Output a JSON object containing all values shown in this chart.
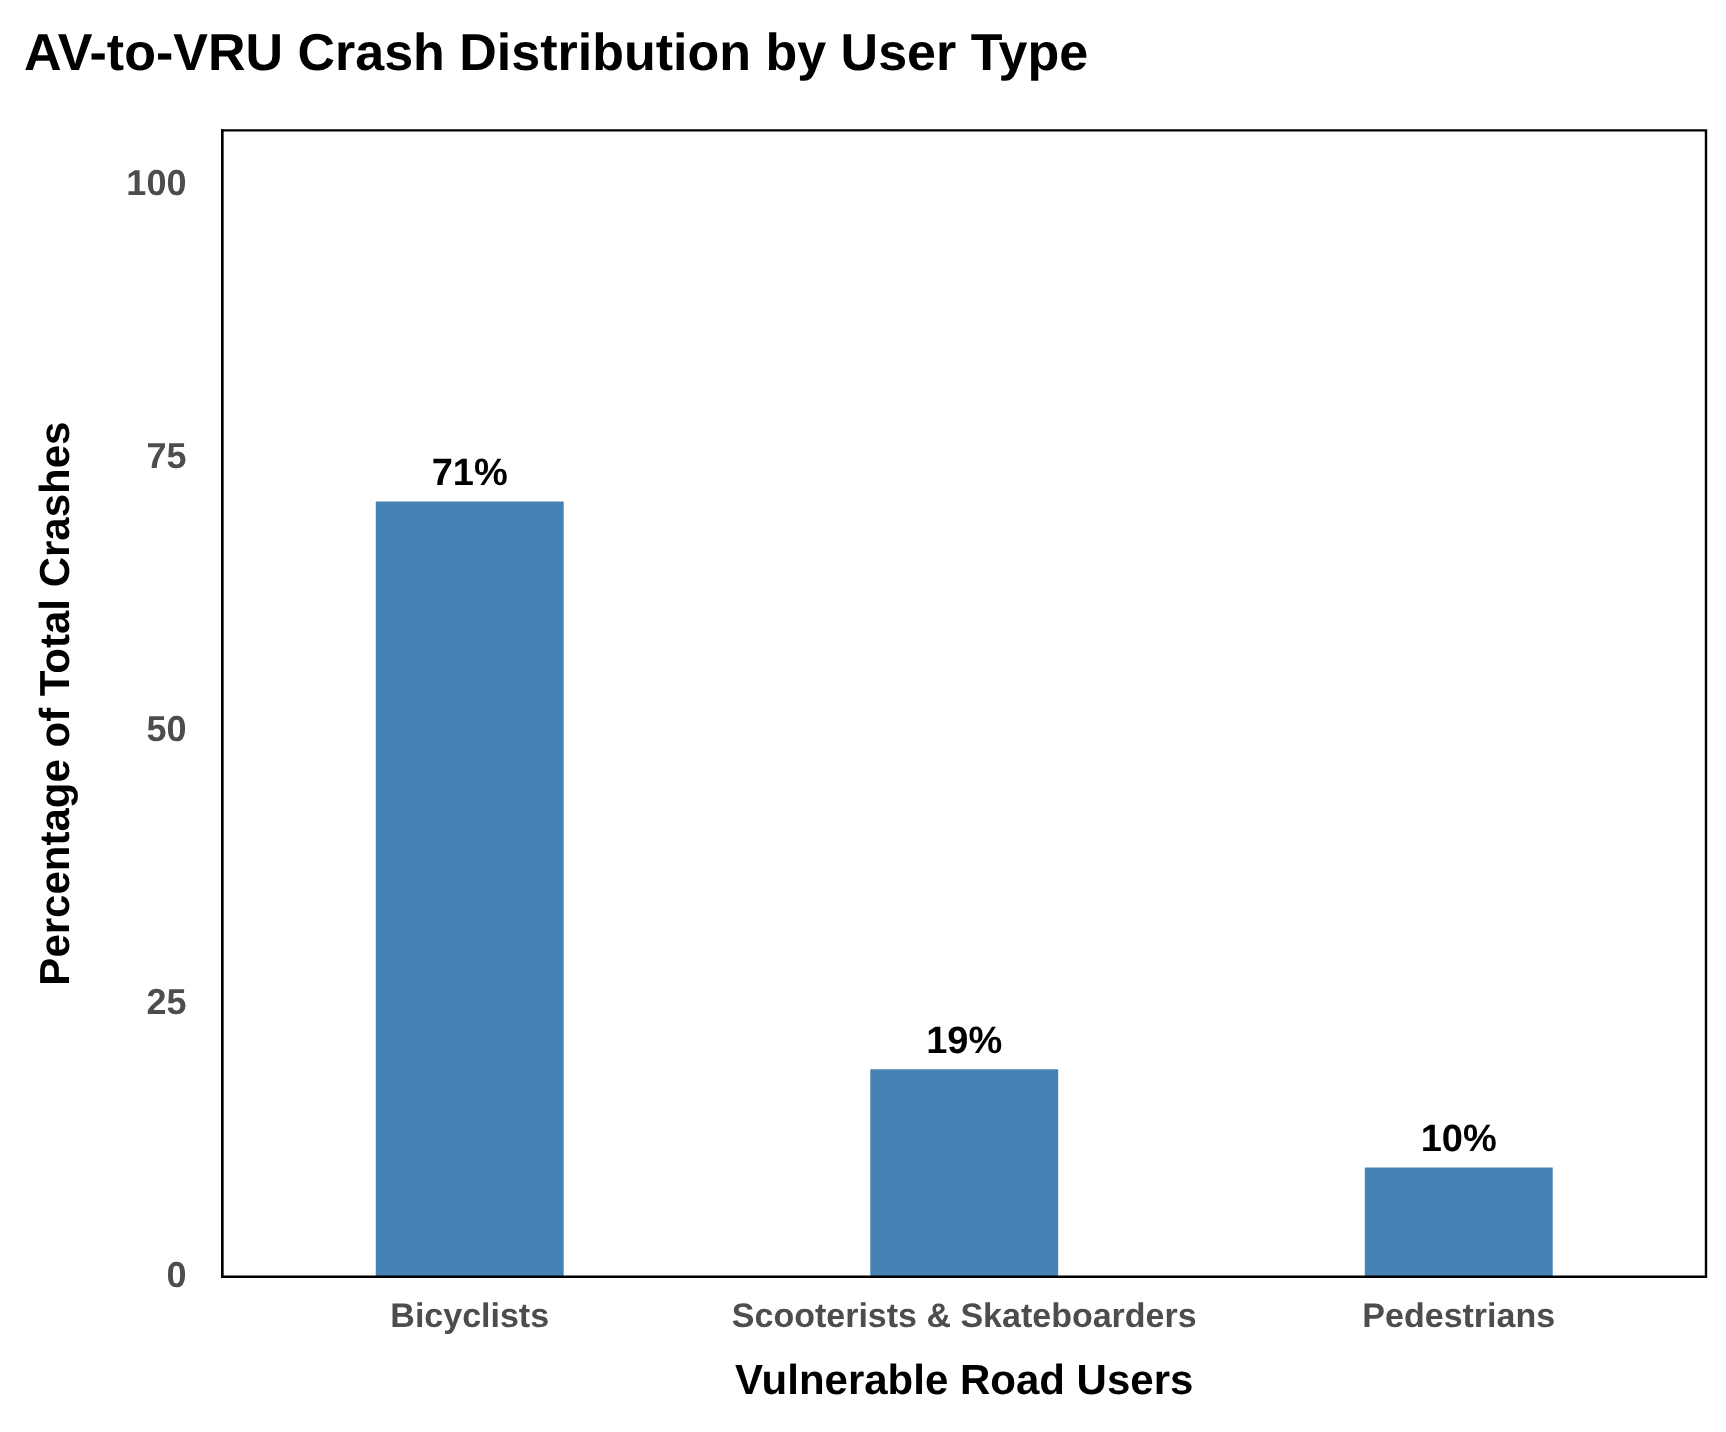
{
  "chart_data": {
    "type": "bar",
    "title": "AV-to-VRU Crash Distribution by User Type",
    "xlabel": "Vulnerable Road Users",
    "ylabel": "Percentage of Total Crashes",
    "categories": [
      "Bicyclists",
      "Scooterists & Skateboarders",
      "Pedestrians"
    ],
    "values": [
      71,
      19,
      10
    ],
    "value_labels": [
      "71%",
      "19%",
      "10%"
    ],
    "color": "#4682b4",
    "ylim": [
      0,
      105
    ],
    "yticks": [
      0,
      25,
      50,
      75,
      100
    ],
    "grid": false,
    "legend": false
  }
}
